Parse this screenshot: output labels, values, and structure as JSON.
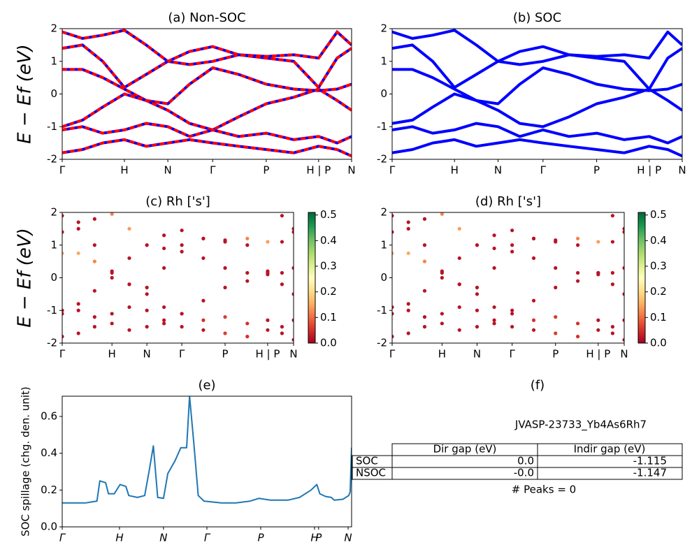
{
  "chart_data": [
    {
      "type": "line",
      "title": "(a) Non-SOC",
      "ylabel": "E − Ef (eV)",
      "color": "#ff0000",
      "underlay_color": "#0000ff",
      "dashed": true,
      "xlim": [
        0,
        1
      ],
      "ylim": [
        -2,
        2
      ],
      "yticks": [
        -2,
        -1,
        0,
        1,
        2
      ],
      "xticks": [
        {
          "value": 0,
          "label": "Γ"
        },
        {
          "value": 0.215,
          "label": "H"
        },
        {
          "value": 0.365,
          "label": "N"
        },
        {
          "value": 0.52,
          "label": "Γ"
        },
        {
          "value": 0.705,
          "label": "P"
        },
        {
          "value": 0.886,
          "label": "H | P"
        },
        {
          "value": 1,
          "label": "N"
        }
      ],
      "x": [
        0,
        0.07,
        0.14,
        0.215,
        0.29,
        0.365,
        0.44,
        0.52,
        0.61,
        0.705,
        0.8,
        0.886,
        0.95,
        1
      ],
      "series": [
        {
          "values": [
            1.9,
            1.7,
            1.8,
            1.95,
            1.5,
            1.0,
            0.9,
            1.0,
            1.2,
            1.15,
            1.2,
            1.1,
            1.9,
            1.5
          ]
        },
        {
          "values": [
            1.4,
            1.5,
            1.0,
            0.2,
            0.6,
            1.0,
            1.3,
            1.45,
            1.2,
            1.1,
            1.0,
            0.2,
            1.1,
            1.4
          ]
        },
        {
          "values": [
            0.75,
            0.75,
            0.5,
            0.15,
            -0.2,
            -0.3,
            0.3,
            0.8,
            0.6,
            0.3,
            0.15,
            0.1,
            0.15,
            0.3
          ]
        },
        {
          "values": [
            -1.0,
            -0.8,
            -0.4,
            0.0,
            -0.2,
            -0.5,
            -0.9,
            -1.1,
            -0.7,
            -0.3,
            -0.1,
            0.15,
            -0.2,
            -0.5
          ]
        },
        {
          "values": [
            -1.1,
            -1.0,
            -1.2,
            -1.1,
            -0.9,
            -1.0,
            -1.3,
            -1.1,
            -1.3,
            -1.2,
            -1.4,
            -1.3,
            -1.5,
            -1.3
          ]
        },
        {
          "values": [
            -1.8,
            -1.7,
            -1.5,
            -1.4,
            -1.6,
            -1.5,
            -1.4,
            -1.5,
            -1.6,
            -1.7,
            -1.8,
            -1.6,
            -1.7,
            -1.9
          ]
        }
      ]
    },
    {
      "type": "line",
      "title": "(b) SOC",
      "color": "#0000ff",
      "dashed": false,
      "xlim": [
        0,
        1
      ],
      "ylim": [
        -2,
        2
      ],
      "yticks": [
        -2,
        -1,
        0,
        1,
        2
      ],
      "xticks": [
        {
          "value": 0,
          "label": "Γ"
        },
        {
          "value": 0.215,
          "label": "H"
        },
        {
          "value": 0.365,
          "label": "N"
        },
        {
          "value": 0.52,
          "label": "Γ"
        },
        {
          "value": 0.705,
          "label": "P"
        },
        {
          "value": 0.886,
          "label": "H | P"
        },
        {
          "value": 1,
          "label": "N"
        }
      ],
      "x": [
        0,
        0.07,
        0.14,
        0.215,
        0.29,
        0.365,
        0.44,
        0.52,
        0.61,
        0.705,
        0.8,
        0.886,
        0.95,
        1
      ],
      "series": [
        {
          "values": [
            1.9,
            1.7,
            1.8,
            1.95,
            1.5,
            1.0,
            0.9,
            1.0,
            1.2,
            1.15,
            1.2,
            1.1,
            1.9,
            1.5
          ]
        },
        {
          "values": [
            1.4,
            1.5,
            1.0,
            0.2,
            0.6,
            1.0,
            1.3,
            1.45,
            1.2,
            1.1,
            1.0,
            0.15,
            1.1,
            1.4
          ]
        },
        {
          "values": [
            0.75,
            0.75,
            0.5,
            0.15,
            -0.2,
            -0.3,
            0.3,
            0.8,
            0.6,
            0.3,
            0.15,
            0.1,
            0.15,
            0.3
          ]
        },
        {
          "values": [
            -0.9,
            -0.8,
            -0.4,
            0.0,
            -0.2,
            -0.5,
            -0.9,
            -1.0,
            -0.7,
            -0.3,
            -0.1,
            0.15,
            -0.2,
            -0.5
          ]
        },
        {
          "values": [
            -1.1,
            -1.0,
            -1.2,
            -1.1,
            -0.9,
            -1.0,
            -1.3,
            -1.1,
            -1.3,
            -1.2,
            -1.4,
            -1.3,
            -1.5,
            -1.3
          ]
        },
        {
          "values": [
            -1.8,
            -1.7,
            -1.5,
            -1.4,
            -1.6,
            -1.5,
            -1.4,
            -1.5,
            -1.6,
            -1.7,
            -1.8,
            -1.6,
            -1.7,
            -1.9
          ]
        }
      ]
    },
    {
      "type": "scatter",
      "title": "(c)  Rh ['s']",
      "ylabel": "E − Ef (eV)",
      "colormap": "RdYlGn",
      "clim": [
        0,
        0.51
      ],
      "cticks": [
        {
          "value": 0,
          "label": "0.0"
        },
        0.1,
        0.2,
        0.3,
        0.4,
        0.5
      ],
      "xlim": [
        0,
        1
      ],
      "ylim": [
        -2,
        2
      ],
      "yticks": [
        -2,
        -1,
        0,
        1,
        2
      ],
      "xticks": [
        {
          "value": 0,
          "label": "Γ"
        },
        {
          "value": 0.215,
          "label": "H"
        },
        {
          "value": 0.366,
          "label": "N"
        },
        {
          "value": 0.517,
          "label": "Γ"
        },
        {
          "value": 0.704,
          "label": "P"
        },
        {
          "value": 0.888,
          "label": "H | P"
        },
        {
          "value": 1,
          "label": "N"
        }
      ],
      "x": [
        0,
        0.07,
        0.14,
        0.215,
        0.29,
        0.366,
        0.44,
        0.517,
        0.61,
        0.704,
        0.8,
        0.888,
        0.95,
        1
      ],
      "series": [
        {
          "values": [
            1.9,
            1.7,
            1.8,
            1.95,
            1.5,
            1.0,
            0.9,
            1.0,
            1.2,
            1.15,
            1.2,
            1.1,
            1.9,
            1.5
          ],
          "weights": [
            0.02,
            0.02,
            0.02,
            0.12,
            0.14,
            0.12,
            0.02,
            0.02,
            0.02,
            0.02,
            0.12,
            0.14,
            0.02,
            0.02
          ]
        },
        {
          "values": [
            1.4,
            1.5,
            1.0,
            0.2,
            0.6,
            1.0,
            1.3,
            1.45,
            1.2,
            1.1,
            1.0,
            0.2,
            1.1,
            1.4
          ],
          "weights": [
            0.02,
            0.02,
            0.02,
            0.02,
            0.02,
            0.02,
            0.02,
            0.02,
            0.02,
            0.02,
            0.02,
            0.02,
            0.02,
            0.02
          ]
        },
        {
          "values": [
            0.75,
            0.75,
            0.5,
            0.15,
            -0.2,
            -0.3,
            0.3,
            0.8,
            0.6,
            0.3,
            0.15,
            0.1,
            0.15,
            0.3
          ],
          "weights": [
            0.15,
            0.15,
            0.12,
            0.02,
            0.02,
            0.02,
            0.02,
            0.02,
            0.02,
            0.02,
            0.02,
            0.02,
            0.02,
            0.02
          ]
        },
        {
          "values": [
            -1.0,
            -0.8,
            -0.4,
            0.0,
            -0.2,
            -0.5,
            -0.9,
            -1.1,
            -0.7,
            -0.3,
            -0.1,
            0.15,
            -0.2,
            -0.5
          ],
          "weights": [
            0.02,
            0.02,
            0.02,
            0.02,
            0.02,
            0.02,
            0.02,
            0.02,
            0.02,
            0.02,
            0.02,
            0.02,
            0.02,
            0.02
          ]
        },
        {
          "values": [
            -1.1,
            -1.0,
            -1.2,
            -1.1,
            -0.9,
            -1.0,
            -1.3,
            -1.1,
            -1.3,
            -1.2,
            -1.4,
            -1.3,
            -1.5,
            -1.3
          ],
          "weights": [
            0.02,
            0.02,
            0.02,
            0.02,
            0.02,
            0.02,
            0.02,
            0.02,
            0.05,
            0.06,
            0.05,
            0.02,
            0.02,
            0.02
          ]
        },
        {
          "values": [
            -1.8,
            -1.7,
            -1.5,
            -1.4,
            -1.6,
            -1.5,
            -1.4,
            -1.5,
            -1.6,
            -1.7,
            -1.8,
            -1.6,
            -1.7,
            -1.9
          ],
          "weights": [
            0.02,
            0.02,
            0.02,
            0.02,
            0.02,
            0.02,
            0.02,
            0.02,
            0.02,
            0.06,
            0.05,
            0.02,
            0.02,
            0.02
          ]
        }
      ]
    },
    {
      "type": "scatter",
      "title": "(d) Rh ['s']",
      "colormap": "RdYlGn",
      "clim": [
        0,
        0.51
      ],
      "cticks": [
        {
          "value": 0,
          "label": "0.0"
        },
        0.1,
        0.2,
        0.3,
        0.4,
        0.5
      ],
      "xlim": [
        0,
        1
      ],
      "ylim": [
        -2,
        2
      ],
      "yticks": [
        -2,
        -1,
        0,
        1,
        2
      ],
      "xticks": [
        {
          "value": 0,
          "label": "Γ"
        },
        {
          "value": 0.215,
          "label": "H"
        },
        {
          "value": 0.366,
          "label": "N"
        },
        {
          "value": 0.517,
          "label": "Γ"
        },
        {
          "value": 0.704,
          "label": "P"
        },
        {
          "value": 0.888,
          "label": "H | P"
        },
        {
          "value": 1,
          "label": "N"
        }
      ],
      "x": [
        0,
        0.07,
        0.14,
        0.215,
        0.29,
        0.366,
        0.44,
        0.517,
        0.61,
        0.704,
        0.8,
        0.888,
        0.95,
        1
      ],
      "series": [
        {
          "values": [
            1.9,
            1.7,
            1.8,
            1.95,
            1.5,
            1.0,
            0.9,
            1.0,
            1.2,
            1.15,
            1.2,
            1.1,
            1.9,
            1.5
          ],
          "weights": [
            0.02,
            0.02,
            0.02,
            0.12,
            0.14,
            0.12,
            0.02,
            0.02,
            0.02,
            0.02,
            0.12,
            0.14,
            0.02,
            0.02
          ]
        },
        {
          "values": [
            1.4,
            1.5,
            1.0,
            0.2,
            0.6,
            1.0,
            1.3,
            1.45,
            1.2,
            1.1,
            1.0,
            0.15,
            1.1,
            1.4
          ],
          "weights": [
            0.02,
            0.02,
            0.02,
            0.02,
            0.02,
            0.02,
            0.02,
            0.02,
            0.02,
            0.02,
            0.02,
            0.02,
            0.02,
            0.02
          ]
        },
        {
          "values": [
            0.75,
            0.75,
            0.5,
            0.15,
            -0.2,
            -0.3,
            0.3,
            0.8,
            0.6,
            0.3,
            0.15,
            0.1,
            0.15,
            0.3
          ],
          "weights": [
            0.15,
            0.15,
            0.12,
            0.02,
            0.02,
            0.02,
            0.02,
            0.02,
            0.02,
            0.02,
            0.02,
            0.02,
            0.02,
            0.02
          ]
        },
        {
          "values": [
            -0.9,
            -0.8,
            -0.4,
            0.0,
            -0.2,
            -0.5,
            -0.9,
            -1.0,
            -0.7,
            -0.3,
            -0.1,
            0.15,
            -0.2,
            -0.5
          ],
          "weights": [
            0.02,
            0.02,
            0.02,
            0.02,
            0.02,
            0.02,
            0.02,
            0.02,
            0.02,
            0.02,
            0.02,
            0.02,
            0.02,
            0.02
          ]
        },
        {
          "values": [
            -1.1,
            -1.0,
            -1.2,
            -1.1,
            -0.9,
            -1.0,
            -1.3,
            -1.1,
            -1.3,
            -1.2,
            -1.4,
            -1.3,
            -1.5,
            -1.3
          ],
          "weights": [
            0.02,
            0.02,
            0.02,
            0.02,
            0.02,
            0.02,
            0.02,
            0.02,
            0.05,
            0.06,
            0.05,
            0.02,
            0.02,
            0.02
          ]
        },
        {
          "values": [
            -1.8,
            -1.7,
            -1.5,
            -1.4,
            -1.6,
            -1.5,
            -1.4,
            -1.5,
            -1.6,
            -1.7,
            -1.8,
            -1.6,
            -1.7,
            -1.9
          ],
          "weights": [
            0.02,
            0.02,
            0.02,
            0.02,
            0.02,
            0.02,
            0.02,
            0.02,
            0.02,
            0.06,
            0.05,
            0.02,
            0.02,
            0.02
          ]
        }
      ]
    },
    {
      "type": "line",
      "title": "(e)",
      "ylabel": "SOC spillage (chg. den. unit)",
      "color": "#1f77b4",
      "dashed": false,
      "italic_xticks": true,
      "xlim": [
        0,
        1
      ],
      "ylim": [
        0,
        0.71
      ],
      "yticks": [
        {
          "value": 0,
          "label": "0.0"
        },
        0.2,
        0.4,
        0.6
      ],
      "xticks": [
        {
          "value": 0,
          "label": "Γ"
        },
        {
          "value": 0.198,
          "label": "H"
        },
        {
          "value": 0.35,
          "label": "N"
        },
        {
          "value": 0.5,
          "label": "Γ"
        },
        {
          "value": 0.686,
          "label": "P"
        },
        {
          "value": 0.872,
          "label": "H"
        },
        {
          "value": 0.886,
          "label": "P"
        },
        {
          "value": 0.988,
          "label": "N"
        }
      ],
      "x": [
        0,
        0.08,
        0.12,
        0.13,
        0.15,
        0.16,
        0.18,
        0.2,
        0.22,
        0.23,
        0.26,
        0.285,
        0.3,
        0.315,
        0.33,
        0.35,
        0.365,
        0.39,
        0.41,
        0.43,
        0.44,
        0.455,
        0.47,
        0.49,
        0.55,
        0.6,
        0.65,
        0.68,
        0.72,
        0.78,
        0.82,
        0.86,
        0.88,
        0.89,
        0.91,
        0.93,
        0.94,
        0.97,
        0.99,
        0.995,
        1
      ],
      "series": [
        {
          "values": [
            0.13,
            0.13,
            0.14,
            0.25,
            0.24,
            0.18,
            0.18,
            0.23,
            0.22,
            0.17,
            0.16,
            0.17,
            0.3,
            0.44,
            0.16,
            0.155,
            0.29,
            0.36,
            0.43,
            0.43,
            0.71,
            0.45,
            0.17,
            0.14,
            0.13,
            0.13,
            0.14,
            0.155,
            0.145,
            0.145,
            0.16,
            0.2,
            0.23,
            0.18,
            0.165,
            0.16,
            0.145,
            0.15,
            0.17,
            0.19,
            0.43
          ]
        }
      ]
    }
  ],
  "table": {
    "title": "(f)",
    "id": "JVASP-23733_Yb4As6Rh7",
    "columns": [
      "Dir gap (eV)",
      "Indir gap (eV)"
    ],
    "rows": [
      [
        "SOC",
        "0.0",
        "-1.115"
      ],
      [
        "NSOC",
        "-0.0",
        "-1.147"
      ]
    ],
    "note": "# Peaks = 0"
  }
}
